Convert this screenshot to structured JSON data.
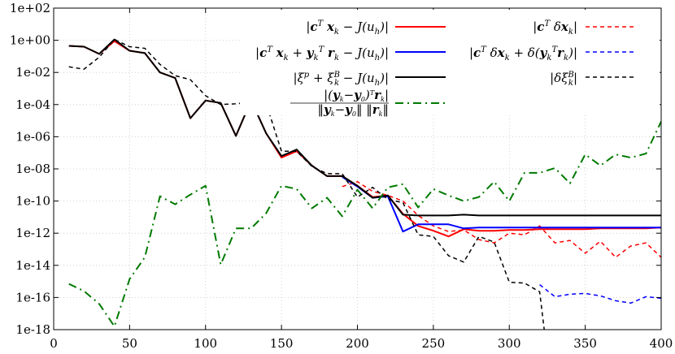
{
  "chart_data": {
    "type": "line",
    "title": "",
    "xlabel": "",
    "ylabel": "",
    "xlim": [
      0,
      400
    ],
    "ylim_log10": [
      -18,
      2
    ],
    "y_scale": "log",
    "x_ticks": [
      0,
      50,
      100,
      150,
      200,
      250,
      300,
      350,
      400
    ],
    "x_tick_labels": [
      "0",
      "50",
      "100",
      "150",
      "200",
      "250",
      "300",
      "350",
      "400"
    ],
    "y_ticks_log10": [
      2,
      0,
      -2,
      -4,
      -6,
      -8,
      -10,
      -12,
      -14,
      -16,
      -18
    ],
    "y_tick_labels": [
      "1e+02",
      "1e+00",
      "1e-02",
      "1e-04",
      "1e-06",
      "1e-08",
      "1e-10",
      "1e-12",
      "1e-14",
      "1e-16",
      "1e-18"
    ],
    "grid": true,
    "legend": "top-right",
    "series": [
      {
        "id": "red-solid",
        "name": "|c^T x_k − J(u_h)|",
        "color": "#ff0000",
        "dash": "solid",
        "legend_column": "left",
        "x": [
          10,
          20,
          30,
          40,
          50,
          60,
          70,
          80,
          90,
          100,
          110,
          120,
          130,
          140,
          150,
          160,
          170,
          180,
          190,
          200,
          210,
          220,
          230,
          240,
          250,
          260,
          270,
          280,
          290,
          300,
          310,
          320,
          330,
          340,
          350,
          360,
          370,
          380,
          390,
          400
        ],
        "log10y": [
          -0.35,
          -0.4,
          -0.85,
          -0.05,
          -0.65,
          -0.8,
          -2.0,
          -2.35,
          -4.85,
          -3.75,
          -3.9,
          -5.95,
          -3.75,
          -5.8,
          -7.3,
          -6.9,
          -7.8,
          -8.45,
          -8.45,
          -9.05,
          -9.75,
          -9.65,
          -10.8,
          -11.55,
          -11.85,
          -12.2,
          -11.75,
          -11.85,
          -11.85,
          -11.8,
          -11.8,
          -11.75,
          -11.75,
          -11.75,
          -11.75,
          -11.7,
          -11.7,
          -11.7,
          -11.7,
          -11.65
        ]
      },
      {
        "id": "red-dashed",
        "name": "|c^T δx_k|",
        "color": "#ff0000",
        "dash": "dashed",
        "legend_column": "right",
        "x": [
          190,
          200,
          210,
          220,
          230,
          240,
          250,
          260,
          270,
          280,
          290,
          300,
          310,
          320,
          330,
          340,
          350,
          360,
          370,
          380,
          390,
          400
        ],
        "log10y": [
          -9.1,
          -8.8,
          -9.4,
          -9.65,
          -10.0,
          -10.9,
          -11.55,
          -11.9,
          -11.8,
          -12.4,
          -12.6,
          -12.0,
          -12.1,
          -11.55,
          -12.6,
          -12.45,
          -13.25,
          -12.5,
          -13.5,
          -12.8,
          -12.6,
          -13.5
        ]
      },
      {
        "id": "blue-solid",
        "name": "|c^T x_k + y_k^T r_k − J(u_h)|",
        "color": "#0000ff",
        "dash": "solid",
        "legend_column": "left",
        "x": [
          190,
          200,
          210,
          220,
          230,
          240,
          250,
          260,
          270,
          280,
          290,
          300,
          310,
          320,
          330,
          340,
          350,
          360,
          370,
          380,
          390,
          400
        ],
        "log10y": [
          -8.5,
          -9.1,
          -9.8,
          -9.7,
          -11.9,
          -11.45,
          -11.45,
          -11.45,
          -11.7,
          -11.65,
          -11.65,
          -11.65,
          -11.65,
          -11.65,
          -11.65,
          -11.65,
          -11.65,
          -11.65,
          -11.65,
          -11.65,
          -11.65,
          -11.65
        ]
      },
      {
        "id": "blue-dashed",
        "name": "|c^T δx_k + δ(y_k^T r_k)|",
        "color": "#0000ff",
        "dash": "dashed",
        "legend_column": "right",
        "x": [
          320,
          330,
          340,
          350,
          360,
          370,
          380,
          390,
          400
        ],
        "log10y": [
          -15.2,
          -15.95,
          -15.8,
          -15.75,
          -15.9,
          -16.2,
          -16.35,
          -15.95,
          -16.05
        ]
      },
      {
        "id": "black-solid",
        "name": "|ξ^p + ξ_k^B − J(u_h)|",
        "color": "#000000",
        "dash": "solid",
        "legend_column": "left",
        "x": [
          10,
          20,
          30,
          40,
          50,
          60,
          70,
          80,
          90,
          100,
          110,
          120,
          130,
          140,
          150,
          160,
          170,
          180,
          190,
          200,
          210,
          220,
          230,
          240,
          250,
          260,
          270,
          280,
          290,
          300,
          310,
          320,
          330,
          340,
          350,
          360,
          370,
          380,
          390,
          400
        ],
        "log10y": [
          -0.35,
          -0.4,
          -0.85,
          0.05,
          -0.65,
          -0.8,
          -2.0,
          -2.35,
          -4.85,
          -3.75,
          -3.9,
          -5.95,
          -3.75,
          -5.8,
          -7.2,
          -6.8,
          -7.8,
          -8.45,
          -8.45,
          -9.05,
          -9.8,
          -9.65,
          -10.85,
          -10.9,
          -10.9,
          -10.9,
          -10.85,
          -10.9,
          -10.9,
          -10.9,
          -10.9,
          -10.9,
          -10.9,
          -10.9,
          -10.9,
          -10.9,
          -10.9,
          -10.9,
          -10.9,
          -10.9
        ]
      },
      {
        "id": "black-dashed",
        "name": "|δξ_k^B|",
        "color": "#000000",
        "dash": "dashed",
        "legend_column": "right",
        "x": [
          10,
          20,
          30,
          40,
          50,
          60,
          70,
          80,
          90,
          100,
          110,
          120,
          130,
          140,
          150,
          160,
          170,
          180,
          190,
          200,
          210,
          220,
          230,
          240,
          250,
          260,
          270,
          280,
          290,
          300,
          310,
          320,
          323
        ],
        "log10y": [
          -1.65,
          -1.8,
          -1.05,
          0.05,
          -0.4,
          -0.5,
          -1.5,
          -2.2,
          -2.45,
          -3.45,
          -4.0,
          -3.95,
          -3.85,
          -3.95,
          -6.9,
          -6.9,
          -7.85,
          -8.3,
          -8.3,
          -9.75,
          -9.15,
          -9.9,
          -10.1,
          -12.1,
          -12.2,
          -13.4,
          -13.8,
          -12.2,
          -12.55,
          -15.05,
          -15.1,
          -15.65,
          -18.0
        ]
      },
      {
        "id": "green-dashdot",
        "name": "|(y_k−y_0)^T r_k| / (‖y_k−y_0‖ ‖r_k‖)",
        "color": "#007a00",
        "dash": "dashdot",
        "legend_column": "left",
        "x": [
          10,
          20,
          30,
          40,
          50,
          60,
          70,
          80,
          90,
          100,
          110,
          120,
          130,
          140,
          150,
          160,
          170,
          180,
          190,
          200,
          210,
          220,
          230,
          240,
          250,
          260,
          270,
          280,
          290,
          300,
          310,
          320,
          330,
          340,
          350,
          360,
          370,
          380,
          390,
          400
        ],
        "log10y": [
          -15.15,
          -15.6,
          -16.4,
          -17.8,
          -14.85,
          -13.5,
          -9.7,
          -10.2,
          -9.6,
          -9.05,
          -13.95,
          -11.7,
          -11.7,
          -10.75,
          -9.05,
          -9.25,
          -10.45,
          -9.8,
          -10.95,
          -9.3,
          -10.45,
          -9.15,
          -8.95,
          -10.4,
          -9.25,
          -9.65,
          -10.0,
          -9.75,
          -8.8,
          -10.0,
          -8.25,
          -8.25,
          -7.95,
          -8.9,
          -7.1,
          -7.8,
          -7.1,
          -7.3,
          -7.05,
          -5.05
        ]
      }
    ]
  }
}
